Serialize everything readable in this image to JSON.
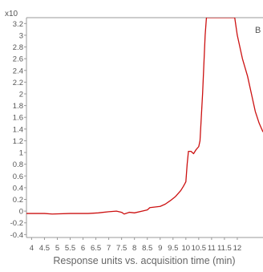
{
  "chart_data": {
    "type": "line",
    "multiplier_label": "x10",
    "panel_label": "B",
    "xlabel": "Response units vs. acquisition time (min)",
    "ylabel": "",
    "xlim": [
      3.8,
      13.0
    ],
    "ylim": [
      -0.45,
      3.3
    ],
    "x_ticks": [
      4,
      4.5,
      5,
      5.5,
      6,
      6.5,
      7,
      7.5,
      8,
      8.5,
      9,
      9.5,
      10,
      10.5,
      11,
      11.5,
      12
    ],
    "x_tick_labels": [
      "4",
      "4.5",
      "5",
      "5.5",
      "6",
      "6.5",
      "7",
      "7.5",
      "8",
      "8.5",
      "9",
      "9.5",
      "10",
      "10.5",
      "11",
      "11.5",
      "12"
    ],
    "y_ticks": [
      -0.4,
      -0.2,
      0,
      0.2,
      0.4,
      0.6,
      0.8,
      1,
      1.2,
      1.4,
      1.6,
      1.8,
      2,
      2.2,
      2.4,
      2.6,
      2.8,
      3,
      3.2
    ],
    "y_tick_labels": [
      "-0.4",
      "-0.2",
      "0",
      "0.2",
      "0.4",
      "0.6",
      "0.8",
      "1",
      "1.2",
      "1.4",
      "1.6",
      "1.8",
      "2",
      "2.2",
      "2.4",
      "2.6",
      "2.8",
      "3",
      "3.2"
    ],
    "grid": false,
    "line_color": "#cc1111",
    "series": [
      {
        "x": [
          3.8,
          4.5,
          4.8,
          5.5,
          6.0,
          6.2,
          6.6,
          7.0,
          7.3,
          7.5,
          7.6,
          7.8,
          8.0,
          8.3,
          8.5,
          8.6,
          8.8,
          9.0,
          9.2,
          9.4,
          9.6,
          9.8,
          9.9,
          10.0,
          10.05,
          10.1,
          10.2,
          10.3,
          10.4,
          10.5,
          10.55,
          10.6,
          10.65,
          10.7,
          10.75,
          10.8,
          11.9,
          12.0,
          12.2,
          12.4,
          12.55,
          12.7,
          12.85,
          13.0
        ],
        "y": [
          -0.04,
          -0.04,
          -0.05,
          -0.04,
          -0.04,
          -0.04,
          -0.03,
          -0.01,
          0.0,
          -0.02,
          -0.05,
          -0.02,
          -0.03,
          0.0,
          0.02,
          0.06,
          0.07,
          0.08,
          0.12,
          0.18,
          0.25,
          0.35,
          0.42,
          0.5,
          0.8,
          1.02,
          1.02,
          0.98,
          1.05,
          1.1,
          1.2,
          1.6,
          2.0,
          2.5,
          3.0,
          3.3,
          3.3,
          3.0,
          2.6,
          2.3,
          2.0,
          1.7,
          1.5,
          1.35
        ]
      }
    ]
  }
}
